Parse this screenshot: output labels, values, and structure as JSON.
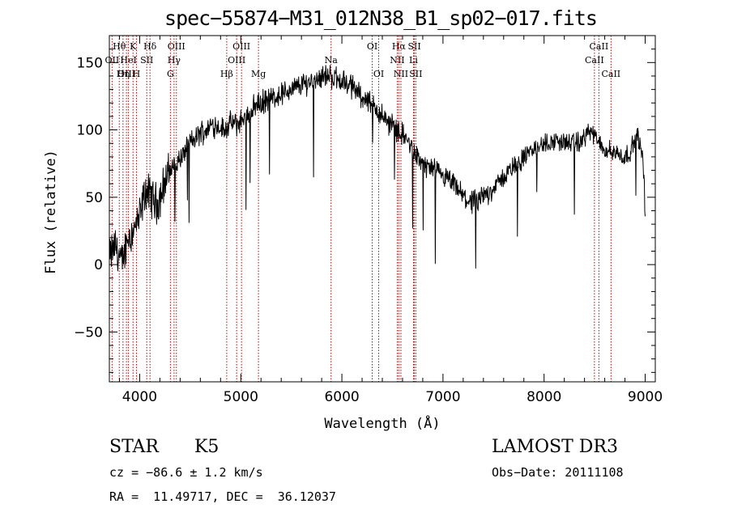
{
  "chart_data": {
    "type": "line",
    "title": "spec−55874−M31_012N38_B1_sp02−017.fits",
    "xlabel": "Wavelength (Å)",
    "ylabel": "Flux (relative)",
    "xlim": [
      3700,
      9100
    ],
    "ylim": [
      -87,
      170
    ],
    "xticks": [
      4000,
      5000,
      6000,
      7000,
      8000,
      9000
    ],
    "xtick_labels": [
      "4000",
      "5000",
      "6000",
      "7000",
      "8000",
      "9000"
    ],
    "yticks": [
      -50,
      0,
      50,
      100,
      150
    ],
    "ytick_labels": [
      "−50",
      "0",
      "50",
      "100",
      "150"
    ],
    "series": [
      {
        "name": "flux",
        "x": [
          3700,
          3760,
          3820,
          3880,
          3940,
          4000,
          4060,
          4120,
          4180,
          4240,
          4300,
          4360,
          4420,
          4480,
          4540,
          4600,
          4660,
          4720,
          4780,
          4840,
          4900,
          4960,
          5020,
          5080,
          5140,
          5200,
          5260,
          5320,
          5380,
          5440,
          5500,
          5560,
          5620,
          5680,
          5740,
          5800,
          5860,
          5920,
          5980,
          6040,
          6100,
          6160,
          6220,
          6280,
          6340,
          6400,
          6460,
          6520,
          6580,
          6640,
          6700,
          6760,
          6820,
          6880,
          6940,
          7000,
          7060,
          7120,
          7180,
          7240,
          7300,
          7360,
          7420,
          7480,
          7540,
          7600,
          7660,
          7720,
          7780,
          7840,
          7900,
          7960,
          8020,
          8080,
          8140,
          8200,
          8260,
          8320,
          8380,
          8440,
          8500,
          8560,
          8620,
          8680,
          8740,
          8800,
          8860,
          8920,
          8980,
          9000
        ],
        "y": [
          5,
          15,
          0,
          20,
          25,
          35,
          55,
          50,
          45,
          60,
          70,
          75,
          80,
          90,
          92,
          98,
          100,
          104,
          103,
          100,
          105,
          104,
          108,
          112,
          118,
          120,
          122,
          124,
          126,
          128,
          130,
          132,
          134,
          136,
          138,
          140,
          140,
          139,
          137,
          135,
          132,
          128,
          124,
          120,
          115,
          110,
          106,
          102,
          98,
          93,
          85,
          78,
          74,
          71,
          68,
          65,
          62,
          58,
          52,
          48,
          46,
          47,
          52,
          56,
          60,
          65,
          70,
          74,
          78,
          82,
          86,
          88,
          90,
          91,
          92,
          91,
          90,
          90,
          92,
          100,
          95,
          88,
          85,
          84,
          82,
          80,
          85,
          97,
          78,
          40
        ]
      }
    ],
    "line_markers": [
      {
        "label": "Hθ",
        "x": 3798,
        "row": 0
      },
      {
        "label": "OII",
        "x": 3727,
        "row": 1
      },
      {
        "label": "OIII",
        "x": 3869,
        "row": 2
      },
      {
        "label": "K",
        "x": 3934,
        "row": 0
      },
      {
        "label": "HeI",
        "x": 3889,
        "row": 1
      },
      {
        "label": "Hη",
        "x": 3835,
        "row": 2
      },
      {
        "label": "SII",
        "x": 4070,
        "row": 1
      },
      {
        "label": "H",
        "x": 3968,
        "row": 2
      },
      {
        "label": "Hδ",
        "x": 4102,
        "row": 0
      },
      {
        "label": "OIII",
        "x": 4363,
        "row": 0
      },
      {
        "label": "Hγ",
        "x": 4340,
        "row": 1
      },
      {
        "label": "G",
        "x": 4304,
        "row": 2
      },
      {
        "label": "OIII",
        "x": 5007,
        "row": 0
      },
      {
        "label": "OIII",
        "x": 4959,
        "row": 1
      },
      {
        "label": "Hβ",
        "x": 4861,
        "row": 2
      },
      {
        "label": "Mg",
        "x": 5175,
        "row": 2
      },
      {
        "label": "Na",
        "x": 5893,
        "row": 1
      },
      {
        "label": "OI",
        "x": 6300,
        "row": 0
      },
      {
        "label": "OI",
        "x": 6364,
        "row": 2
      },
      {
        "label": "Hα",
        "x": 6563,
        "row": 0
      },
      {
        "label": "NII",
        "x": 6548,
        "row": 1
      },
      {
        "label": "NII",
        "x": 6584,
        "row": 2
      },
      {
        "label": "SII",
        "x": 6717,
        "row": 0
      },
      {
        "label": "Li",
        "x": 6708,
        "row": 1
      },
      {
        "label": "SII",
        "x": 6731,
        "row": 2
      },
      {
        "label": "CaII",
        "x": 8542,
        "row": 0
      },
      {
        "label": "CaII",
        "x": 8498,
        "row": 1
      },
      {
        "label": "CaII",
        "x": 8662,
        "row": 2
      }
    ]
  },
  "info": {
    "class": "STAR",
    "subclass": "K5",
    "survey": "LAMOST DR3",
    "cz": "cz = −86.6 ± 1.2 km/s",
    "obs_date": "Obs−Date: 20111108",
    "coords": "RA =  11.49717, DEC =  36.12037"
  },
  "colors": {
    "marker_line": "#c00000",
    "spectrum": "#000000"
  }
}
